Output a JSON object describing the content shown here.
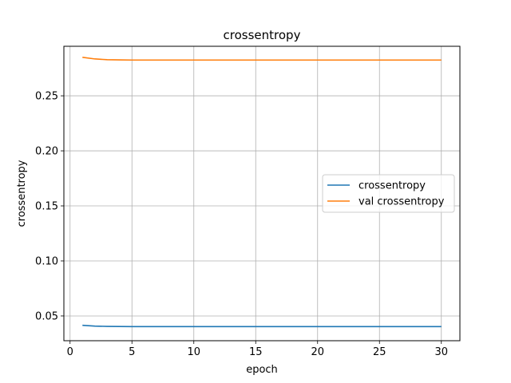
{
  "chart_data": {
    "type": "line",
    "title": "crossentropy",
    "xlabel": "epoch",
    "ylabel": "crossentropy",
    "xlim": [
      -0.5,
      31.5
    ],
    "ylim": [
      0.0275,
      0.295
    ],
    "xticks": [
      0,
      5,
      10,
      15,
      20,
      25,
      30
    ],
    "xtick_labels": [
      "0",
      "5",
      "10",
      "15",
      "20",
      "25",
      "30"
    ],
    "yticks": [
      0.05,
      0.1,
      0.15,
      0.2,
      0.25
    ],
    "ytick_labels": [
      "0.05",
      "0.10",
      "0.15",
      "0.20",
      "0.25"
    ],
    "grid": true,
    "legend_position": "center-right",
    "series": [
      {
        "name": "crossentropy",
        "color": "#1f77b4",
        "x": [
          1,
          2,
          3,
          4,
          5,
          6,
          7,
          8,
          9,
          10,
          11,
          12,
          13,
          14,
          15,
          16,
          17,
          18,
          19,
          20,
          21,
          22,
          23,
          24,
          25,
          26,
          27,
          28,
          29,
          30
        ],
        "y": [
          0.0415,
          0.0408,
          0.0405,
          0.0404,
          0.0403,
          0.0403,
          0.0403,
          0.0403,
          0.0403,
          0.0403,
          0.0403,
          0.0403,
          0.0403,
          0.0403,
          0.0403,
          0.0403,
          0.0403,
          0.0403,
          0.0403,
          0.0403,
          0.0403,
          0.0403,
          0.0403,
          0.0403,
          0.0403,
          0.0403,
          0.0403,
          0.0403,
          0.0403,
          0.0403
        ]
      },
      {
        "name": "val crossentropy",
        "color": "#ff7f0e",
        "x": [
          1,
          2,
          3,
          4,
          5,
          6,
          7,
          8,
          9,
          10,
          11,
          12,
          13,
          14,
          15,
          16,
          17,
          18,
          19,
          20,
          21,
          22,
          23,
          24,
          25,
          26,
          27,
          28,
          29,
          30
        ],
        "y": [
          0.285,
          0.2835,
          0.2828,
          0.2826,
          0.2825,
          0.2825,
          0.2825,
          0.2825,
          0.2825,
          0.2825,
          0.2825,
          0.2825,
          0.2825,
          0.2825,
          0.2825,
          0.2825,
          0.2825,
          0.2825,
          0.2825,
          0.2825,
          0.2825,
          0.2825,
          0.2825,
          0.2825,
          0.2825,
          0.2825,
          0.2825,
          0.2825,
          0.2825,
          0.2825
        ]
      }
    ]
  }
}
